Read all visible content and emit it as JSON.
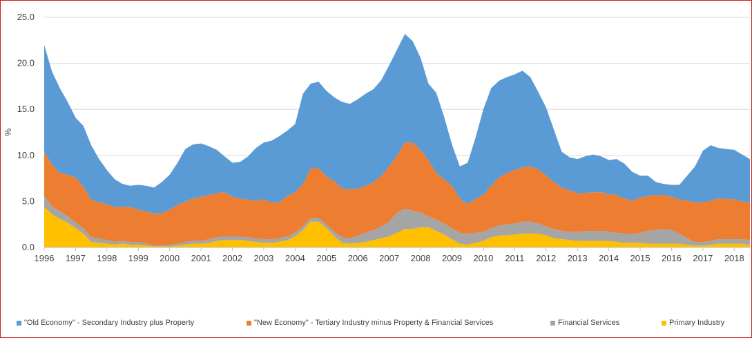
{
  "chart_data": {
    "type": "area",
    "stacked": true,
    "title": "",
    "xlabel": "",
    "ylabel": "%",
    "ylim": [
      0,
      25
    ],
    "y_ticks": [
      "0.0",
      "5.0",
      "10.0",
      "15.0",
      "20.0",
      "25.0"
    ],
    "x_ticks": [
      "1996",
      "1997",
      "1998",
      "1999",
      "2000",
      "2001",
      "2002",
      "2003",
      "2004",
      "2005",
      "2006",
      "2007",
      "2008",
      "2009",
      "2010",
      "2011",
      "2012",
      "2013",
      "2014",
      "2015",
      "2016",
      "2017",
      "2018"
    ],
    "x_range": [
      1996.0,
      2018.5
    ],
    "grid": "horizontal",
    "legend_position": "bottom",
    "x": [
      1996.0,
      1996.25,
      1996.5,
      1996.75,
      1997.0,
      1997.25,
      1997.5,
      1997.75,
      1998.0,
      1998.25,
      1998.5,
      1998.75,
      1999.0,
      1999.25,
      1999.5,
      1999.75,
      2000.0,
      2000.25,
      2000.5,
      2000.75,
      2001.0,
      2001.25,
      2001.5,
      2001.75,
      2002.0,
      2002.25,
      2002.5,
      2002.75,
      2003.0,
      2003.25,
      2003.5,
      2003.75,
      2004.0,
      2004.25,
      2004.5,
      2004.75,
      2005.0,
      2005.25,
      2005.5,
      2005.75,
      2006.0,
      2006.25,
      2006.5,
      2006.75,
      2007.0,
      2007.25,
      2007.5,
      2007.75,
      2008.0,
      2008.25,
      2008.5,
      2008.75,
      2009.0,
      2009.25,
      2009.5,
      2009.75,
      2010.0,
      2010.25,
      2010.5,
      2010.75,
      2011.0,
      2011.25,
      2011.5,
      2011.75,
      2012.0,
      2012.25,
      2012.5,
      2012.75,
      2013.0,
      2013.25,
      2013.5,
      2013.75,
      2014.0,
      2014.25,
      2014.5,
      2014.75,
      2015.0,
      2015.25,
      2015.5,
      2015.75,
      2016.0,
      2016.25,
      2016.5,
      2016.75,
      2017.0,
      2017.25,
      2017.5,
      2017.75,
      2018.0,
      2018.25,
      2018.5
    ],
    "series": [
      {
        "name": "Primary Industry",
        "color": "#ffc000",
        "values": [
          4.4,
          3.6,
          3.1,
          2.7,
          2.1,
          1.5,
          0.6,
          0.5,
          0.4,
          0.3,
          0.4,
          0.3,
          0.3,
          0.2,
          0.1,
          0.1,
          0.1,
          0.2,
          0.3,
          0.4,
          0.4,
          0.5,
          0.7,
          0.8,
          0.8,
          0.8,
          0.7,
          0.6,
          0.5,
          0.5,
          0.6,
          0.8,
          1.2,
          1.9,
          2.8,
          2.8,
          2.1,
          1.2,
          0.5,
          0.4,
          0.5,
          0.6,
          0.8,
          1.0,
          1.2,
          1.6,
          2.0,
          2.0,
          2.2,
          2.2,
          1.8,
          1.4,
          0.9,
          0.4,
          0.3,
          0.5,
          0.7,
          1.1,
          1.3,
          1.3,
          1.4,
          1.5,
          1.5,
          1.5,
          1.3,
          1.0,
          0.9,
          0.8,
          0.7,
          0.7,
          0.7,
          0.7,
          0.7,
          0.6,
          0.5,
          0.5,
          0.5,
          0.4,
          0.4,
          0.4,
          0.4,
          0.4,
          0.3,
          0.2,
          0.2,
          0.3,
          0.4,
          0.4,
          0.4,
          0.4,
          0.3
        ]
      },
      {
        "name": "Financial Services",
        "color": "#a5a5a5",
        "values": [
          1.2,
          0.9,
          0.8,
          0.7,
          0.6,
          0.6,
          0.5,
          0.5,
          0.4,
          0.3,
          0.3,
          0.3,
          0.3,
          0.2,
          0.1,
          0.1,
          0.2,
          0.2,
          0.3,
          0.3,
          0.3,
          0.4,
          0.4,
          0.4,
          0.4,
          0.4,
          0.4,
          0.4,
          0.4,
          0.4,
          0.4,
          0.4,
          0.4,
          0.4,
          0.4,
          0.4,
          0.4,
          0.5,
          0.6,
          0.6,
          0.8,
          1.0,
          1.1,
          1.3,
          1.6,
          2.2,
          2.2,
          2.0,
          1.6,
          1.2,
          1.2,
          1.2,
          1.2,
          1.2,
          1.2,
          1.1,
          1.0,
          1.0,
          1.1,
          1.2,
          1.2,
          1.3,
          1.3,
          1.1,
          1.0,
          1.0,
          0.9,
          0.9,
          1.0,
          1.1,
          1.1,
          1.1,
          1.0,
          1.0,
          1.0,
          1.0,
          1.1,
          1.4,
          1.5,
          1.6,
          1.5,
          1.1,
          0.7,
          0.4,
          0.4,
          0.4,
          0.5,
          0.5,
          0.5,
          0.5,
          0.5
        ]
      },
      {
        "name": "\"New Economy\" - Tertiary Industry minus Property & Financial Services",
        "color": "#ed7d31",
        "values": [
          4.8,
          4.5,
          4.2,
          4.5,
          4.9,
          4.5,
          4.1,
          3.9,
          3.9,
          3.8,
          3.7,
          3.8,
          3.5,
          3.5,
          3.5,
          3.5,
          3.8,
          4.2,
          4.4,
          4.6,
          4.8,
          4.8,
          4.8,
          4.8,
          4.3,
          4.1,
          4.1,
          4.1,
          4.3,
          4.0,
          3.9,
          4.4,
          4.4,
          4.6,
          5.4,
          5.4,
          5.2,
          5.5,
          5.3,
          5.3,
          5.1,
          5.1,
          5.2,
          5.5,
          6.0,
          6.2,
          7.2,
          7.4,
          6.8,
          6.1,
          5.1,
          4.8,
          4.6,
          3.7,
          3.2,
          3.7,
          4.0,
          4.6,
          5.2,
          5.6,
          5.8,
          5.9,
          6.0,
          5.9,
          5.5,
          5.1,
          4.7,
          4.5,
          4.2,
          4.1,
          4.2,
          4.2,
          4.1,
          4.1,
          3.8,
          3.6,
          3.8,
          3.8,
          3.8,
          3.7,
          3.6,
          3.7,
          4.1,
          4.3,
          4.3,
          4.4,
          4.4,
          4.4,
          4.3,
          4.1,
          4.1
        ]
      },
      {
        "name": "\"Old Economy\" - Secondary Industry plus Property",
        "color": "#5b9bd5",
        "values": [
          11.6,
          10.1,
          9.2,
          7.9,
          6.5,
          6.6,
          5.9,
          4.7,
          3.7,
          3.0,
          2.5,
          2.3,
          2.7,
          2.8,
          2.8,
          3.4,
          3.8,
          4.6,
          5.7,
          5.9,
          5.8,
          5.3,
          4.7,
          3.9,
          3.7,
          4.0,
          4.7,
          5.7,
          6.2,
          6.7,
          7.2,
          7.1,
          7.4,
          9.8,
          9.2,
          9.4,
          9.3,
          9.1,
          9.4,
          9.3,
          9.7,
          10.0,
          10.1,
          10.4,
          11.0,
          11.5,
          11.8,
          11.0,
          10.0,
          8.3,
          8.7,
          6.8,
          4.5,
          3.5,
          4.5,
          6.6,
          9.3,
          10.6,
          10.5,
          10.4,
          10.4,
          10.5,
          9.7,
          8.4,
          7.4,
          5.7,
          3.9,
          3.6,
          3.7,
          4.0,
          4.1,
          3.9,
          3.7,
          3.9,
          3.8,
          3.1,
          2.4,
          2.2,
          1.4,
          1.2,
          1.3,
          1.6,
          2.7,
          3.9,
          5.6,
          6.0,
          5.5,
          5.4,
          5.4,
          5.1,
          4.7
        ]
      }
    ],
    "legend_order": [
      "\"Old Economy\" - Secondary Industry plus Property",
      "\"New Economy\" - Tertiary Industry minus Property & Financial Services",
      "Financial Services",
      "Primary Industry"
    ]
  }
}
